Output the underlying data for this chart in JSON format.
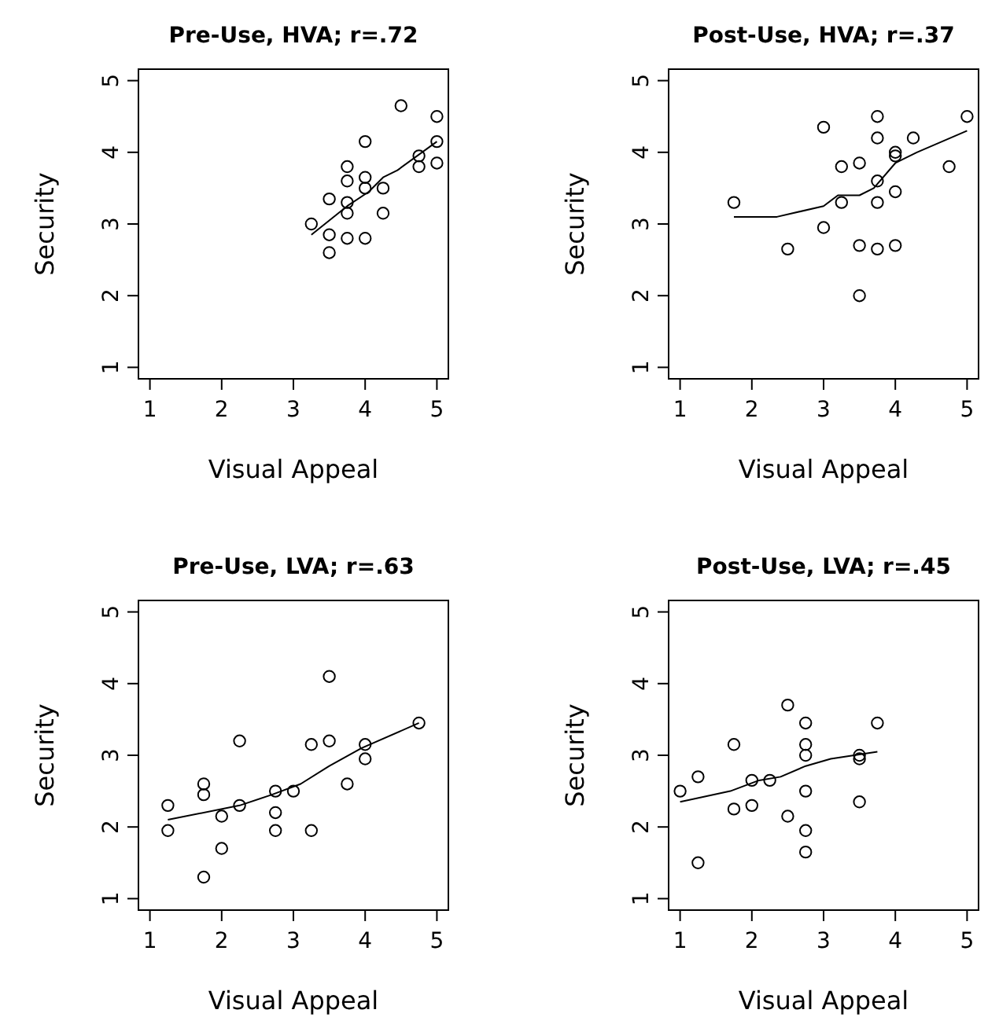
{
  "chart_data": [
    {
      "type": "scatter",
      "title": "Pre-Use, HVA; r=.72",
      "xlabel": "Visual Appeal",
      "ylabel": "Security",
      "xlim": [
        0.84,
        5.16
      ],
      "ylim": [
        0.84,
        5.16
      ],
      "xticks": [
        1,
        2,
        3,
        4,
        5
      ],
      "yticks": [
        1,
        2,
        3,
        4,
        5
      ],
      "grid": false,
      "marker": "circle",
      "series": [
        {
          "color": "#000000",
          "x": [
            3.25,
            3.5,
            3.5,
            3.5,
            3.75,
            3.75,
            3.75,
            3.75,
            3.75,
            4,
            4,
            4,
            4,
            4.25,
            4.25,
            4.5,
            4.75,
            4.75,
            5,
            5,
            5
          ],
          "values": [
            3,
            3.35,
            2.85,
            2.6,
            3.8,
            3.6,
            3.3,
            3.15,
            2.8,
            4.15,
            3.65,
            3.5,
            2.8,
            3.5,
            3.15,
            4.65,
            3.95,
            3.8,
            4.5,
            4.15,
            3.85
          ]
        },
        {
          "type": "line",
          "color": "#000000",
          "marker": "none",
          "x": [
            3.25,
            3.75,
            4.05,
            4.25,
            4.45,
            5
          ],
          "values": [
            2.85,
            3.25,
            3.45,
            3.65,
            3.75,
            4.15
          ]
        }
      ]
    },
    {
      "type": "scatter",
      "title": "Post-Use, HVA; r=.37",
      "xlabel": "Visual Appeal",
      "ylabel": "Security",
      "xlim": [
        0.84,
        5.16
      ],
      "ylim": [
        0.84,
        5.16
      ],
      "xticks": [
        1,
        2,
        3,
        4,
        5
      ],
      "yticks": [
        1,
        2,
        3,
        4,
        5
      ],
      "grid": false,
      "marker": "circle",
      "series": [
        {
          "color": "#000000",
          "x": [
            1.75,
            2.5,
            3,
            3,
            3.25,
            3.25,
            3.5,
            3.5,
            3.5,
            3.75,
            3.75,
            3.75,
            3.75,
            3.75,
            4,
            4,
            4,
            4,
            4.25,
            4.75,
            5
          ],
          "values": [
            3.3,
            2.65,
            4.35,
            2.95,
            3.8,
            3.3,
            3.85,
            2.7,
            2,
            4.5,
            4.2,
            3.6,
            3.3,
            2.65,
            4,
            3.95,
            3.45,
            2.7,
            4.2,
            3.8,
            4.5
          ]
        },
        {
          "type": "line",
          "color": "#000000",
          "marker": "none",
          "x": [
            1.75,
            2.35,
            3,
            3.2,
            3.5,
            3.7,
            4,
            4.3,
            5
          ],
          "values": [
            3.1,
            3.1,
            3.25,
            3.4,
            3.4,
            3.5,
            3.85,
            4,
            4.3
          ]
        }
      ]
    },
    {
      "type": "scatter",
      "title": "Pre-Use, LVA; r=.63",
      "xlabel": "Visual Appeal",
      "ylabel": "Security",
      "xlim": [
        0.84,
        5.16
      ],
      "ylim": [
        0.84,
        5.16
      ],
      "xticks": [
        1,
        2,
        3,
        4,
        5
      ],
      "yticks": [
        1,
        2,
        3,
        4,
        5
      ],
      "grid": false,
      "marker": "circle",
      "series": [
        {
          "color": "#000000",
          "x": [
            1.25,
            1.25,
            1.75,
            1.75,
            1.75,
            2,
            2,
            2.25,
            2.25,
            2.75,
            2.75,
            2.75,
            3,
            3.25,
            3.25,
            3.5,
            3.5,
            3.75,
            4,
            4,
            4.75
          ],
          "values": [
            2.3,
            1.95,
            2.6,
            2.45,
            1.3,
            2.15,
            1.7,
            3.2,
            2.3,
            2.5,
            2.2,
            1.95,
            2.5,
            3.15,
            1.95,
            4.1,
            3.2,
            2.6,
            3.15,
            2.95,
            3.45
          ]
        },
        {
          "type": "line",
          "color": "#000000",
          "marker": "none",
          "x": [
            1.25,
            2.25,
            2.7,
            3.1,
            3.5,
            3.95,
            4.75
          ],
          "values": [
            2.1,
            2.3,
            2.45,
            2.6,
            2.85,
            3.1,
            3.45
          ]
        }
      ]
    },
    {
      "type": "scatter",
      "title": "Post-Use, LVA; r=.45",
      "xlabel": "Visual Appeal",
      "ylabel": "Security",
      "xlim": [
        0.84,
        5.16
      ],
      "ylim": [
        0.84,
        5.16
      ],
      "xticks": [
        1,
        2,
        3,
        4,
        5
      ],
      "yticks": [
        1,
        2,
        3,
        4,
        5
      ],
      "grid": false,
      "marker": "circle",
      "series": [
        {
          "color": "#000000",
          "x": [
            1,
            1.25,
            1.25,
            1.75,
            1.75,
            2,
            2,
            2.25,
            2.5,
            2.5,
            2.75,
            2.75,
            2.75,
            2.75,
            2.75,
            2.75,
            3.5,
            3.5,
            3.5,
            3.75
          ],
          "values": [
            2.5,
            2.7,
            1.5,
            3.15,
            2.25,
            2.65,
            2.3,
            2.65,
            3.7,
            2.15,
            3.45,
            3.15,
            3,
            2.5,
            1.95,
            1.65,
            3,
            2.95,
            2.35,
            3.45
          ]
        },
        {
          "type": "line",
          "color": "#000000",
          "marker": "none",
          "x": [
            1,
            1.7,
            2.1,
            2.4,
            2.75,
            3.1,
            3.75
          ],
          "values": [
            2.35,
            2.5,
            2.65,
            2.7,
            2.85,
            2.95,
            3.05
          ]
        }
      ]
    }
  ]
}
